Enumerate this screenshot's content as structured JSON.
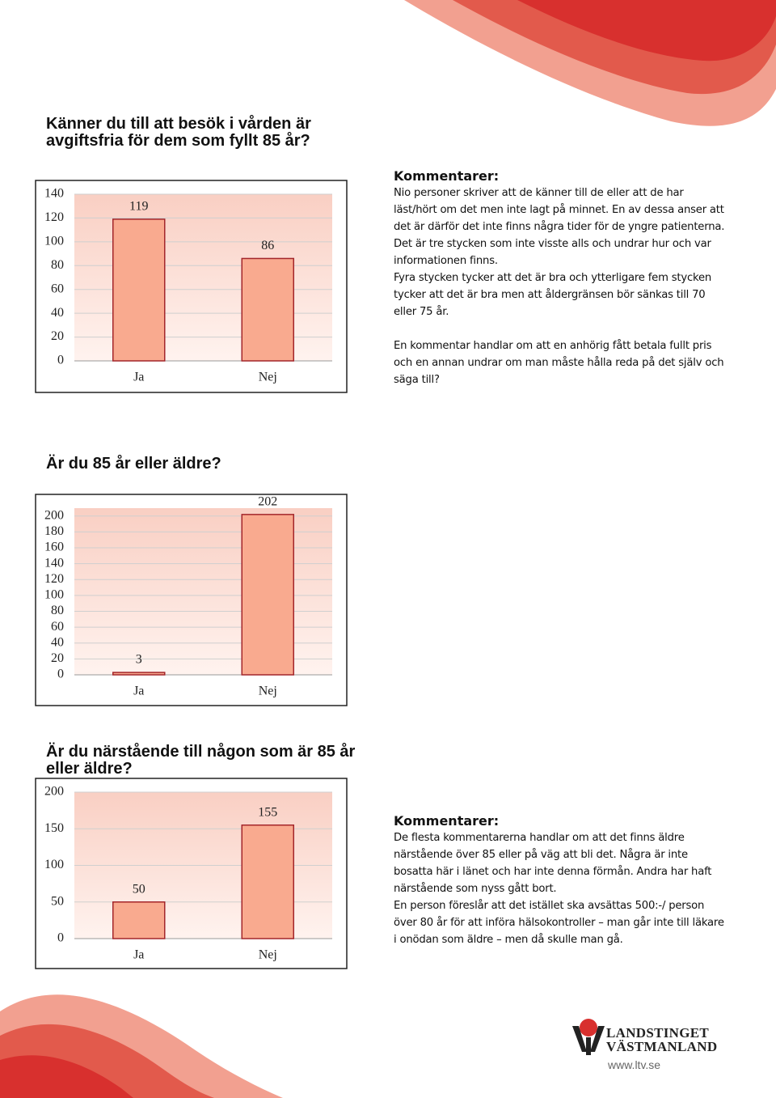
{
  "chart_data": [
    {
      "type": "bar",
      "title": "Känner du till att besök i vården är avgiftsfria för dem som fyllt 85 år?",
      "categories": [
        "Ja",
        "Nej"
      ],
      "values": [
        119,
        86
      ],
      "color": "#f9aa8f",
      "edge_color": "#a3262b",
      "ylim": [
        0,
        140
      ],
      "yticks": [
        0,
        20,
        40,
        60,
        80,
        100,
        120,
        140
      ],
      "grid": true
    },
    {
      "type": "bar",
      "title": "Är du 85 år eller äldre?",
      "categories": [
        "Ja",
        "Nej"
      ],
      "values": [
        3,
        202
      ],
      "color": "#f9aa8f",
      "edge_color": "#a3262b",
      "ylim": [
        0,
        210
      ],
      "yticks": [
        0,
        20,
        40,
        60,
        80,
        100,
        120,
        140,
        160,
        180,
        200
      ],
      "grid": true
    },
    {
      "type": "bar",
      "title": "Är du närstående till någon som är 85 år eller äldre?",
      "categories": [
        "Ja",
        "Nej"
      ],
      "values": [
        50,
        155
      ],
      "color": "#f9aa8f",
      "edge_color": "#a3262b",
      "ylim": [
        0,
        200
      ],
      "yticks": [
        0,
        50,
        100,
        150,
        200
      ],
      "grid": true
    }
  ],
  "comments": [
    {
      "heading": "Kommentarer:",
      "paragraphs": [
        "Nio personer skriver att de känner till de eller att de har läst/hört om det men inte lagt på minnet. En av dessa anser att det är därför det inte finns några tider för de yngre patienterna.",
        "Det är tre stycken som inte visste alls och undrar hur och var informationen finns.",
        "Fyra stycken tycker att det är bra och ytterligare fem stycken tycker att det är bra men att åldergränsen bör sänkas till 70 eller 75 år.",
        "En kommentar handlar om att en anhörig fått betala fullt pris och en annan undrar om man måste hålla reda på det själv och säga till?"
      ]
    },
    {
      "heading": "Kommentarer:",
      "paragraphs": [
        "De flesta kommentarerna handlar om att det finns äldre närstående över 85 eller på väg att bli det. Några är inte bosatta här i länet och har inte denna förmån. Andra har haft närstående som nyss gått bort.",
        "En person föreslår att det istället ska avsättas 500:-/ person över 80 år för att införa hälsokontroller – man går inte till läkare i onödan som äldre – men då skulle man gå."
      ]
    }
  ],
  "logo": {
    "line1": "LANDSTINGET",
    "line2": "VÄSTMANLAND",
    "url": "www.ltv.se"
  }
}
